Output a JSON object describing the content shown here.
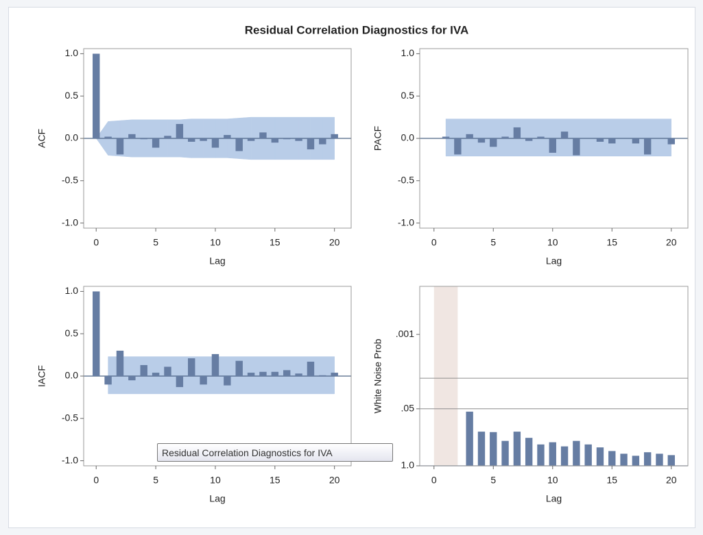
{
  "title": "Residual Correlation Diagnostics for IVA",
  "tooltip": "Residual Correlation Diagnostics for IVA",
  "chart_data": [
    {
      "type": "bar",
      "y_label": "ACF",
      "x_label": "Lag",
      "color": "#667da3",
      "band_color": "#b9cde8",
      "baseline_color": "#4c6385",
      "x": [
        0,
        1,
        2,
        3,
        4,
        5,
        6,
        7,
        8,
        9,
        10,
        11,
        12,
        13,
        14,
        15,
        16,
        17,
        18,
        19,
        20
      ],
      "values": [
        1.0,
        0.02,
        -0.19,
        0.05,
        -0.01,
        -0.11,
        0.03,
        0.17,
        -0.04,
        -0.03,
        -0.11,
        0.04,
        -0.15,
        -0.03,
        0.07,
        -0.05,
        -0.01,
        -0.03,
        -0.13,
        -0.07,
        0.05
      ],
      "band_x": [
        0,
        1,
        2,
        3,
        4,
        5,
        6,
        7,
        8,
        9,
        10,
        11,
        12,
        13,
        14,
        15,
        16,
        17,
        18,
        19,
        20
      ],
      "band_upper": [
        0.0,
        0.2,
        0.21,
        0.22,
        0.22,
        0.22,
        0.22,
        0.22,
        0.23,
        0.23,
        0.23,
        0.23,
        0.24,
        0.25,
        0.25,
        0.25,
        0.25,
        0.25,
        0.25,
        0.25,
        0.25
      ],
      "band_lower": [
        0.0,
        -0.2,
        -0.21,
        -0.22,
        -0.22,
        -0.22,
        -0.22,
        -0.22,
        -0.23,
        -0.23,
        -0.23,
        -0.23,
        -0.24,
        -0.25,
        -0.25,
        -0.25,
        -0.25,
        -0.25,
        -0.25,
        -0.25,
        -0.25
      ],
      "xlim": [
        -1.05,
        21.4
      ],
      "xticks": [
        0,
        5,
        10,
        15,
        20
      ],
      "ylim": [
        -1.06,
        1.06
      ],
      "yticks": [
        {
          "value": -1,
          "label": "-1.0"
        },
        {
          "value": -0.5,
          "label": "-0.5"
        },
        {
          "value": 0,
          "label": "0.0"
        },
        {
          "value": 0.5,
          "label": "0.5"
        },
        {
          "value": 1,
          "label": "1.0"
        }
      ]
    },
    {
      "type": "bar",
      "y_label": "PACF",
      "x_label": "Lag",
      "color": "#667da3",
      "band_color": "#b9cde8",
      "baseline_color": "#4c6385",
      "x": [
        1,
        2,
        3,
        4,
        5,
        6,
        7,
        8,
        9,
        10,
        11,
        12,
        13,
        14,
        15,
        16,
        17,
        18,
        19,
        20
      ],
      "values": [
        0.02,
        -0.19,
        0.05,
        -0.05,
        -0.1,
        0.02,
        0.13,
        -0.03,
        0.02,
        -0.17,
        0.08,
        -0.2,
        0.0,
        -0.04,
        -0.06,
        0.0,
        -0.06,
        -0.19,
        0.0,
        -0.07
      ],
      "band_x": [
        1,
        20
      ],
      "band_upper": [
        0.23,
        0.23
      ],
      "band_lower": [
        -0.21,
        -0.21
      ],
      "xlim": [
        -1.2,
        21.4
      ],
      "xticks": [
        0,
        5,
        10,
        15,
        20
      ],
      "ylim": [
        -1.06,
        1.06
      ],
      "yticks": [
        {
          "value": -1,
          "label": "-1.0"
        },
        {
          "value": -0.5,
          "label": "-0.5"
        },
        {
          "value": 0,
          "label": "0.0"
        },
        {
          "value": 0.5,
          "label": "0.5"
        },
        {
          "value": 1,
          "label": "1.0"
        }
      ]
    },
    {
      "type": "bar",
      "y_label": "IACF",
      "x_label": "Lag",
      "color": "#667da3",
      "band_color": "#b9cde8",
      "baseline_color": "#4c6385",
      "x": [
        0,
        1,
        2,
        3,
        4,
        5,
        6,
        7,
        8,
        9,
        10,
        11,
        12,
        13,
        14,
        15,
        16,
        17,
        18,
        19,
        20
      ],
      "values": [
        1.0,
        -0.1,
        0.3,
        -0.05,
        0.13,
        0.04,
        0.11,
        -0.13,
        0.21,
        -0.1,
        0.26,
        -0.11,
        0.18,
        0.04,
        0.05,
        0.05,
        0.07,
        0.03,
        0.17,
        0.01,
        0.04
      ],
      "band_x": [
        1,
        20
      ],
      "band_upper": [
        0.23,
        0.23
      ],
      "band_lower": [
        -0.21,
        -0.21
      ],
      "xlim": [
        -1.05,
        21.4
      ],
      "xticks": [
        0,
        5,
        10,
        15,
        20
      ],
      "ylim": [
        -1.06,
        1.06
      ],
      "yticks": [
        {
          "value": -1,
          "label": "-1.0"
        },
        {
          "value": -0.5,
          "label": "-0.5"
        },
        {
          "value": 0,
          "label": "0.0"
        },
        {
          "value": 0.5,
          "label": "0.5"
        },
        {
          "value": 1,
          "label": "1.0"
        }
      ]
    },
    {
      "type": "bar",
      "y_label": "White Noise Prob",
      "x_label": "Lag",
      "color": "#667da3",
      "baseline_color": "#4c6385",
      "log_scale": true,
      "shade_x": [
        0,
        2
      ],
      "shade_color": "#f0e6e2",
      "reflines": [
        0.01,
        0.05
      ],
      "refline_color": "#8c8c8c",
      "x": [
        3,
        4,
        5,
        6,
        7,
        8,
        9,
        10,
        11,
        12,
        13,
        14,
        15,
        16,
        17,
        18,
        19,
        20
      ],
      "values": [
        0.058,
        0.166,
        0.17,
        0.27,
        0.166,
        0.23,
        0.325,
        0.29,
        0.36,
        0.27,
        0.325,
        0.38,
        0.46,
        0.53,
        0.59,
        0.49,
        0.53,
        0.57
      ],
      "xlim": [
        -1.2,
        21.4
      ],
      "xticks": [
        0,
        5,
        10,
        15,
        20
      ],
      "ylim": [
        1,
        8e-05
      ],
      "yticks": [
        {
          "value": 0.001,
          "label": ".001"
        },
        {
          "value": 0.05,
          "label": ".05"
        },
        {
          "value": 1,
          "label": "1.0"
        }
      ]
    }
  ]
}
